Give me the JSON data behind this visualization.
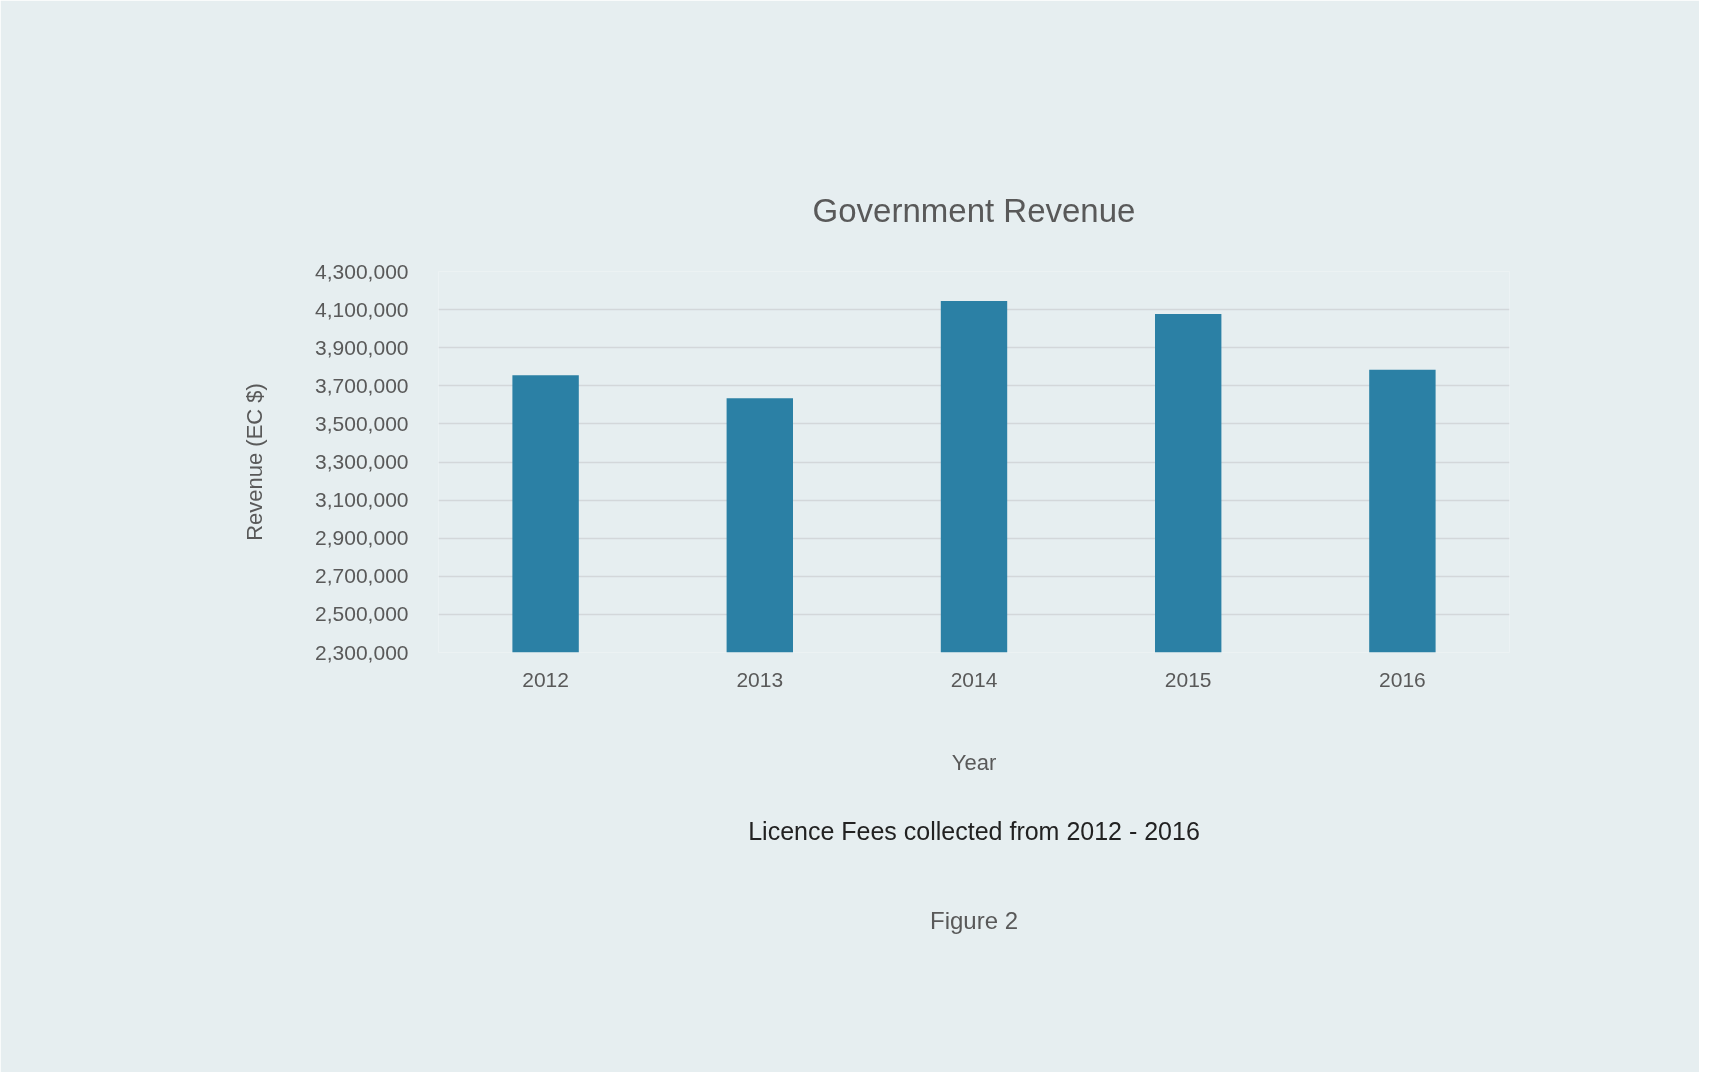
{
  "chart_data": {
    "type": "bar",
    "title": "Government Revenue",
    "xlabel": "Year",
    "ylabel": "Revenue (EC $)",
    "categories": [
      "2012",
      "2013",
      "2014",
      "2015",
      "2016"
    ],
    "values": [
      3755000,
      3635000,
      4145000,
      4077000,
      3784000
    ],
    "color": "#2b80a5",
    "ylim": [
      2300000,
      4300000
    ],
    "yticks": [
      {
        "value": 2300000,
        "label": "2,300,000"
      },
      {
        "value": 2500000,
        "label": "2,500,000"
      },
      {
        "value": 2700000,
        "label": "2,700,000"
      },
      {
        "value": 2900000,
        "label": "2,900,000"
      },
      {
        "value": 3100000,
        "label": "3,100,000"
      },
      {
        "value": 3300000,
        "label": "3,300,000"
      },
      {
        "value": 3500000,
        "label": "3,500,000"
      },
      {
        "value": 3700000,
        "label": "3,700,000"
      },
      {
        "value": 3900000,
        "label": "3,900,000"
      },
      {
        "value": 4100000,
        "label": "4,100,000"
      },
      {
        "value": 4300000,
        "label": "4,300,000"
      }
    ],
    "grid": "y",
    "annotations": [
      "Licence Fees collected from 2012 - 2016",
      "Figure 2"
    ]
  }
}
